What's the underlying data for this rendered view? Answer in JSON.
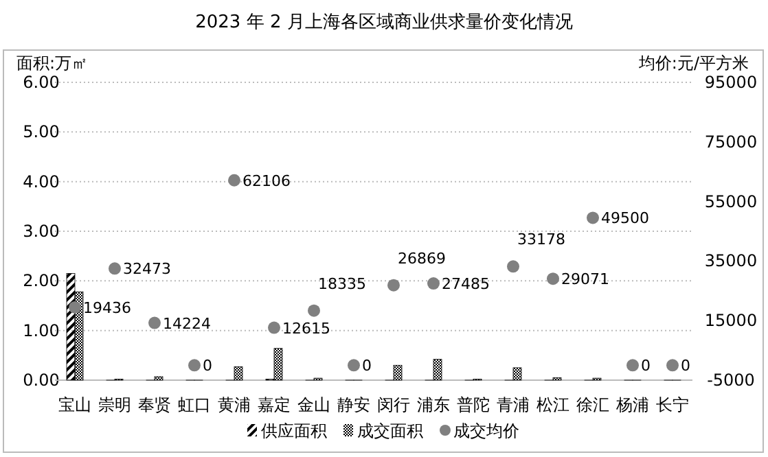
{
  "chart_data": {
    "type": "bar",
    "title": "2023 年 2 月上海各区域商业供求量价变化情况",
    "ylabel": "面积:万㎡",
    "y2label": "均价:元/平方米",
    "categories": [
      "宝山",
      "崇明",
      "奉贤",
      "虹口",
      "黄浦",
      "嘉定",
      "金山",
      "静安",
      "闵行",
      "浦东",
      "普陀",
      "青浦",
      "松江",
      "徐汇",
      "杨浦",
      "长宁"
    ],
    "series": [
      {
        "name": "供应面积",
        "values": [
          2.15,
          0,
          0,
          0,
          0,
          0.02,
          0,
          0,
          0,
          0,
          0,
          0,
          0,
          0,
          0,
          0
        ]
      },
      {
        "name": "成交面积",
        "values": [
          1.78,
          0.02,
          0.07,
          0,
          0.27,
          0.64,
          0.04,
          0,
          0.3,
          0.42,
          0.02,
          0.25,
          0.05,
          0.04,
          0,
          0
        ]
      },
      {
        "name": "成交均价",
        "type": "scatter",
        "axis": "y2",
        "color": "#808080",
        "values": [
          19436,
          32473,
          14224,
          0,
          62106,
          12615,
          18335,
          0,
          26869,
          27485,
          null,
          33178,
          29071,
          49500,
          0,
          0
        ],
        "value_labels": [
          "19436",
          "32473",
          "14224",
          "0",
          "62106",
          "12615",
          "18335",
          "0",
          "26869",
          "27485",
          null,
          "33178",
          "29071",
          "49500",
          "0",
          "0"
        ]
      }
    ],
    "ylim": [
      0,
      6
    ],
    "yticks": [
      {
        "value": 0,
        "label": "0.00"
      },
      {
        "value": 1,
        "label": "1.00"
      },
      {
        "value": 2,
        "label": "2.00"
      },
      {
        "value": 3,
        "label": "3.00"
      },
      {
        "value": 4,
        "label": "4.00"
      },
      {
        "value": 5,
        "label": "5.00"
      },
      {
        "value": 6,
        "label": "6.00"
      }
    ],
    "y2lim": [
      -5000,
      95000
    ],
    "y2ticks": [
      -5000,
      15000,
      35000,
      55000,
      75000,
      95000
    ],
    "grid": "y",
    "legend": "bottom",
    "marker": "circle"
  }
}
